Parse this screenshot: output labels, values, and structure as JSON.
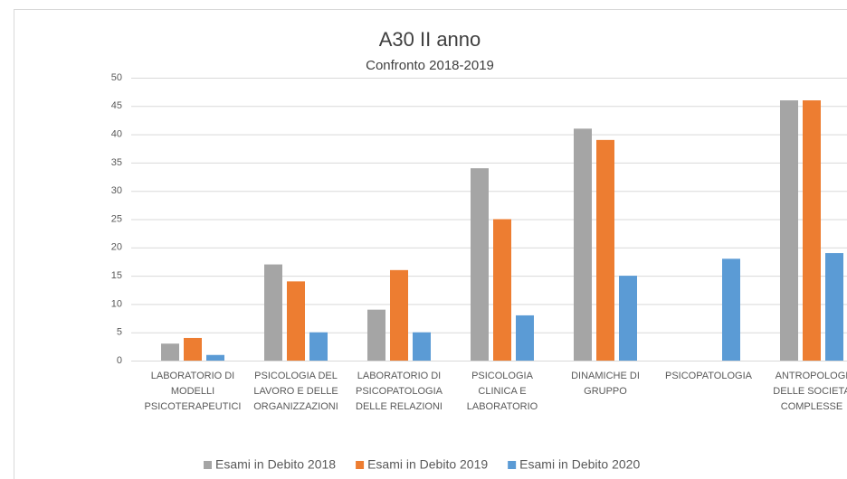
{
  "chart_data": {
    "type": "bar",
    "title": "A30 II anno",
    "subtitle": "Confronto 2018-2019",
    "categories": [
      [
        "LABORATORIO DI",
        "MODELLI",
        "PSICOTERAPEUTICI"
      ],
      [
        "PSICOLOGIA DEL",
        "LAVORO E DELLE",
        "ORGANIZZAZIONI"
      ],
      [
        "LABORATORIO DI",
        "PSICOPATOLOGIA",
        "DELLE RELAZIONI"
      ],
      [
        "PSICOLOGIA",
        "CLINICA E",
        "LABORATORIO"
      ],
      [
        "DINAMICHE DI",
        "GRUPPO"
      ],
      [
        "PSICOPATOLOGIA"
      ],
      [
        "ANTROPOLOGI",
        "DELLE SOCIETA",
        "COMPLESSE"
      ]
    ],
    "series": [
      {
        "name": "Esami in Debito 2018",
        "color": "#a5a5a5",
        "values": [
          3,
          17,
          9,
          34,
          41,
          null,
          46
        ]
      },
      {
        "name": "Esami in Debito 2019",
        "color": "#ed7d31",
        "values": [
          4,
          14,
          16,
          25,
          39,
          null,
          46
        ]
      },
      {
        "name": "Esami in Debito 2020",
        "color": "#5b9bd5",
        "values": [
          1,
          5,
          5,
          8,
          15,
          18,
          19
        ]
      }
    ],
    "ylim": [
      0,
      50
    ],
    "yticks": [
      0,
      5,
      10,
      15,
      20,
      25,
      30,
      35,
      40,
      45,
      50
    ],
    "grid": true,
    "legend": "bottom"
  }
}
